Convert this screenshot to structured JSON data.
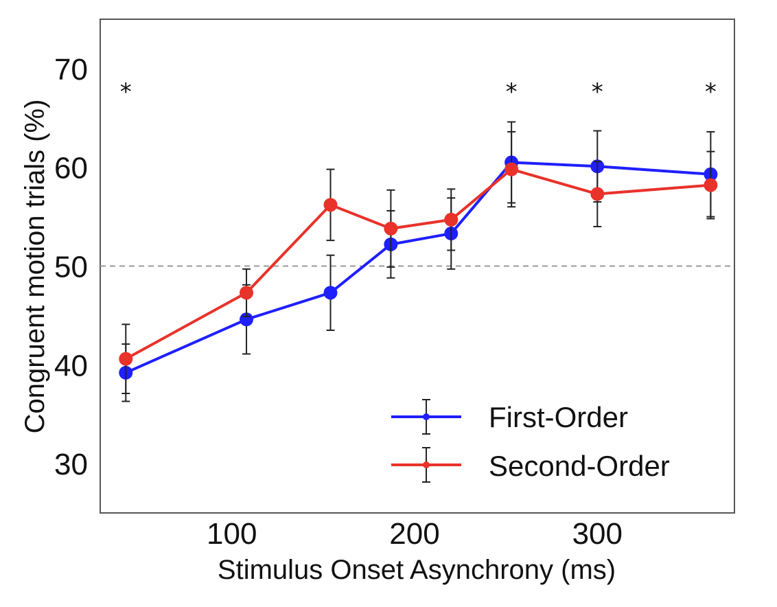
{
  "chart_data": {
    "type": "line",
    "xlabel": "Stimulus Onset Asynchrony (ms)",
    "ylabel": "Congruent motion trials (%)",
    "xlim": [
      28,
      375
    ],
    "ylim": [
      25,
      75
    ],
    "xticks": [
      100,
      200,
      300
    ],
    "yticks": [
      30,
      40,
      50,
      60,
      70
    ],
    "x": [
      42,
      108,
      154,
      187,
      220,
      253,
      300,
      362
    ],
    "reference_line": 50,
    "significance": [
      {
        "x": 42,
        "label": "*"
      },
      {
        "x": 253,
        "label": "*"
      },
      {
        "x": 300,
        "label": "*"
      },
      {
        "x": 362,
        "label": "*"
      }
    ],
    "series": [
      {
        "name": "First-Order",
        "color": "#1f1fff",
        "values": [
          39.2,
          44.6,
          47.3,
          52.2,
          53.3,
          60.5,
          60.1,
          59.3
        ],
        "errors": [
          2.9,
          3.5,
          3.8,
          3.4,
          3.6,
          4.1,
          3.6,
          4.3
        ]
      },
      {
        "name": "Second-Order",
        "color": "#e8322a",
        "values": [
          40.6,
          47.3,
          56.2,
          53.8,
          54.7,
          59.8,
          57.3,
          58.2
        ],
        "errors": [
          3.5,
          2.4,
          3.6,
          3.9,
          3.1,
          3.8,
          3.3,
          3.4
        ]
      }
    ],
    "legend_position": "lower-right",
    "grid": false
  }
}
